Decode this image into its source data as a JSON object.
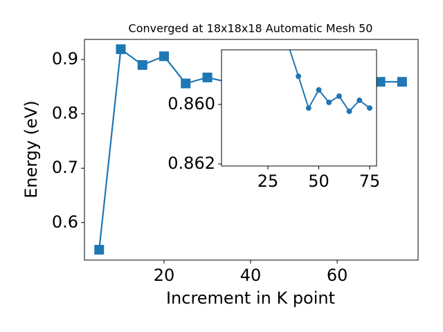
{
  "chart_data": [
    {
      "type": "line",
      "title": "Converged at 18x18x18 Automatic Mesh 50",
      "xlabel": "Increment in K point",
      "ylabel": "Energy (eV)",
      "x": [
        5,
        10,
        15,
        20,
        25,
        30,
        35,
        40,
        45,
        50,
        55,
        60,
        65,
        70,
        75
      ],
      "series": [
        {
          "name": "Energy",
          "color": "#1f77b4",
          "marker": "square",
          "values": [
            0.55,
            0.919,
            0.89,
            0.906,
            0.856,
            0.867,
            0.858,
            0.859,
            0.8601,
            0.8595,
            0.8599,
            0.8597,
            0.8602,
            0.859,
            0.859
          ]
        }
      ],
      "xlim": [
        1.6,
        78.7
      ],
      "ylim": [
        0.531,
        0.937
      ],
      "xticks": [
        20,
        40,
        60
      ],
      "yticks": [
        0.6,
        0.7,
        0.8,
        0.9
      ]
    },
    {
      "type": "line",
      "x": [
        35,
        40,
        45,
        50,
        55,
        60,
        65,
        70,
        75
      ],
      "series": [
        {
          "name": "Energy",
          "color": "#1f77b4",
          "marker": "circle",
          "values": [
            0.858,
            0.85905,
            0.86012,
            0.85951,
            0.85993,
            0.85972,
            0.86023,
            0.85986,
            0.86012
          ]
        }
      ],
      "xlim": [
        2.2,
        78.4
      ],
      "ylim": [
        0.86207,
        0.85816
      ],
      "xticks": [
        25,
        50,
        75
      ],
      "yticks": [
        {
          "value": 0.86,
          "label": "0.860"
        },
        {
          "value": 0.862,
          "label": "0.862"
        }
      ]
    }
  ]
}
